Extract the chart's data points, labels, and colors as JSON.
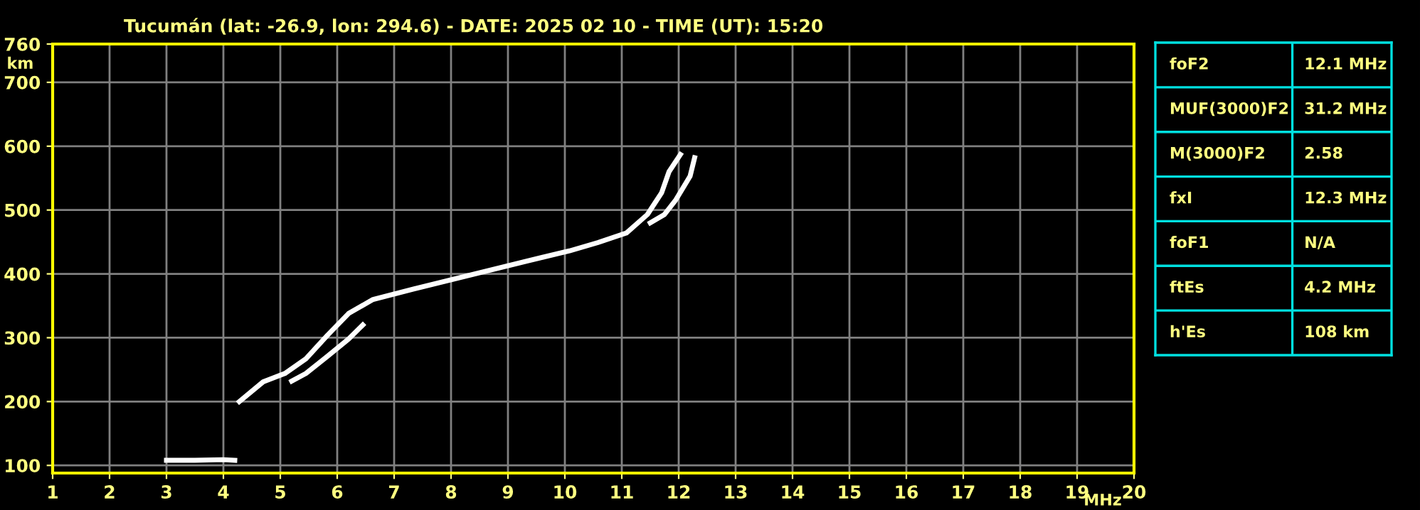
{
  "chart_data": [
    {
      "type": "line",
      "title": "Tucumán (lat: -26.9, lon: 294.6) - DATE: 2025 02 10 - TIME (UT): 15:20",
      "xlabel": "MHz",
      "ylabel": "km",
      "xlim": [
        1,
        20
      ],
      "ylim": [
        88,
        760
      ],
      "xticks": [
        1,
        2,
        3,
        4,
        5,
        6,
        7,
        8,
        9,
        10,
        11,
        12,
        13,
        14,
        15,
        16,
        17,
        18,
        19,
        20
      ],
      "yticks": [
        100,
        200,
        300,
        400,
        500,
        600,
        700,
        760
      ],
      "grid": true,
      "marker": "none",
      "line_style": "solid",
      "series": [
        {
          "color": "#ffffff",
          "x": [
            3.0,
            3.5,
            4.0,
            4.2
          ],
          "values": [
            108,
            108,
            109,
            108
          ]
        },
        {
          "color": "#ffffff",
          "x": [
            4.28,
            4.7,
            5.08,
            5.45,
            5.83,
            6.2,
            6.63,
            7.33,
            8.33,
            9.33,
            10.08,
            10.58,
            11.08,
            11.45,
            11.7,
            11.83,
            12.03
          ],
          "values": [
            200,
            231,
            244,
            267,
            304,
            338,
            360,
            376,
            398,
            420,
            436,
            449,
            464,
            493,
            527,
            560,
            587
          ]
        },
        {
          "color": "#ffffff",
          "x": [
            5.2,
            5.45,
            5.83,
            6.2,
            6.45,
            null,
            11.5,
            11.75,
            11.95,
            12.2,
            12.28
          ],
          "values": [
            232,
            244,
            271,
            298,
            320,
            null,
            480,
            493,
            516,
            553,
            582
          ]
        }
      ]
    },
    {
      "type": "other",
      "annotations": [
        "foF2",
        "12.1 MHz",
        "MUF(3000)F2",
        "31.2 MHz",
        "M(3000)F2",
        "2.58",
        "fxI",
        "12.3 MHz",
        "foF1",
        "N/A",
        "ftEs",
        "4.2 MHz",
        "h'Es",
        "108 km"
      ]
    }
  ]
}
